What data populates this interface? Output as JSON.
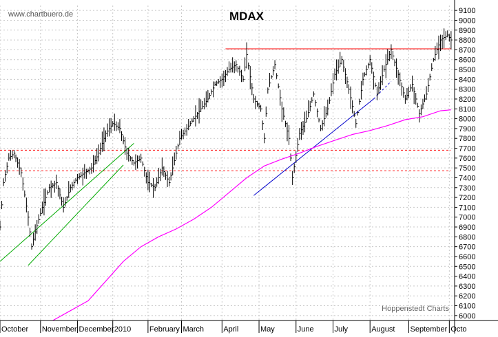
{
  "watermark": "www.chartbuero.de",
  "source_label": "Hoppenstedt Charts",
  "chart_data": {
    "type": "line",
    "title": "MDAX",
    "xlabel": "",
    "ylabel": "",
    "ylim": [
      5950,
      9150
    ],
    "grid": "dashed",
    "y_ticks": [
      6000,
      6100,
      6200,
      6300,
      6400,
      6500,
      6600,
      6700,
      6800,
      6900,
      7000,
      7100,
      7200,
      7300,
      7400,
      7500,
      7600,
      7700,
      7800,
      7900,
      8000,
      8100,
      8200,
      8300,
      8400,
      8500,
      8600,
      8700,
      8800,
      8900,
      9000,
      9100
    ],
    "x_tick_labels": [
      {
        "text": "October",
        "i": 0
      },
      {
        "text": "November",
        "i": 23
      },
      {
        "text": "December",
        "i": 44
      },
      {
        "text": "2010",
        "i": 64
      },
      {
        "text": "February",
        "i": 84
      },
      {
        "text": "March",
        "i": 103
      },
      {
        "text": "April",
        "i": 126
      },
      {
        "text": "May",
        "i": 147
      },
      {
        "text": "June",
        "i": 168
      },
      {
        "text": "July",
        "i": 189
      },
      {
        "text": "August",
        "i": 210
      },
      {
        "text": "September",
        "i": 232
      },
      {
        "text": "Octo",
        "i": 255
      }
    ],
    "x_range": [
      0,
      258
    ],
    "series": [
      {
        "kind": "price",
        "color": "#000000",
        "anchors": [
          [
            0,
            6900
          ],
          [
            2,
            7350
          ],
          [
            5,
            7600
          ],
          [
            8,
            7650
          ],
          [
            12,
            7450
          ],
          [
            16,
            7000
          ],
          [
            18,
            6700
          ],
          [
            20,
            6850
          ],
          [
            24,
            7100
          ],
          [
            28,
            7300
          ],
          [
            32,
            7350
          ],
          [
            36,
            7100
          ],
          [
            40,
            7300
          ],
          [
            44,
            7400
          ],
          [
            48,
            7450
          ],
          [
            52,
            7500
          ],
          [
            56,
            7650
          ],
          [
            60,
            7850
          ],
          [
            64,
            7950
          ],
          [
            68,
            7900
          ],
          [
            72,
            7650
          ],
          [
            76,
            7550
          ],
          [
            80,
            7600
          ],
          [
            84,
            7350
          ],
          [
            88,
            7300
          ],
          [
            92,
            7500
          ],
          [
            96,
            7350
          ],
          [
            98,
            7500
          ],
          [
            102,
            7800
          ],
          [
            106,
            7900
          ],
          [
            110,
            8000
          ],
          [
            114,
            8100
          ],
          [
            118,
            8200
          ],
          [
            122,
            8350
          ],
          [
            126,
            8400
          ],
          [
            130,
            8500
          ],
          [
            134,
            8550
          ],
          [
            138,
            8400
          ],
          [
            140,
            8650
          ],
          [
            144,
            8200
          ],
          [
            148,
            8100
          ],
          [
            150,
            7800
          ],
          [
            152,
            8300
          ],
          [
            156,
            8550
          ],
          [
            160,
            8100
          ],
          [
            164,
            7800
          ],
          [
            166,
            7400
          ],
          [
            170,
            7850
          ],
          [
            174,
            8000
          ],
          [
            178,
            8250
          ],
          [
            182,
            7900
          ],
          [
            186,
            8100
          ],
          [
            190,
            8450
          ],
          [
            194,
            8600
          ],
          [
            198,
            8300
          ],
          [
            202,
            7950
          ],
          [
            206,
            8400
          ],
          [
            210,
            8600
          ],
          [
            214,
            8250
          ],
          [
            218,
            8500
          ],
          [
            222,
            8700
          ],
          [
            226,
            8450
          ],
          [
            230,
            8200
          ],
          [
            234,
            8350
          ],
          [
            238,
            8050
          ],
          [
            242,
            8250
          ],
          [
            246,
            8600
          ],
          [
            250,
            8800
          ],
          [
            254,
            8850
          ],
          [
            256,
            8800
          ]
        ]
      },
      {
        "kind": "moving-average",
        "color": "#ff00ff",
        "anchors": [
          [
            30,
            5950
          ],
          [
            40,
            6050
          ],
          [
            50,
            6150
          ],
          [
            60,
            6350
          ],
          [
            70,
            6550
          ],
          [
            80,
            6700
          ],
          [
            90,
            6800
          ],
          [
            100,
            6880
          ],
          [
            110,
            6980
          ],
          [
            120,
            7100
          ],
          [
            130,
            7250
          ],
          [
            140,
            7400
          ],
          [
            150,
            7520
          ],
          [
            160,
            7590
          ],
          [
            170,
            7650
          ],
          [
            180,
            7720
          ],
          [
            190,
            7780
          ],
          [
            200,
            7840
          ],
          [
            210,
            7880
          ],
          [
            220,
            7930
          ],
          [
            230,
            7990
          ],
          [
            240,
            8020
          ],
          [
            250,
            8080
          ],
          [
            256,
            8090
          ]
        ]
      }
    ],
    "lines": [
      {
        "name": "resistance",
        "color": "#ff0000",
        "style": "solid",
        "from": [
          128,
          8710
        ],
        "to": [
          256,
          8710
        ]
      },
      {
        "name": "support-1",
        "color": "#ff0000",
        "style": "dashed",
        "from": [
          0,
          7680
        ],
        "to": [
          256,
          7680
        ]
      },
      {
        "name": "support-2",
        "color": "#ff0000",
        "style": "dashed",
        "from": [
          0,
          7470
        ],
        "to": [
          256,
          7470
        ]
      },
      {
        "name": "trend-1",
        "color": "#00aa00",
        "style": "solid",
        "from": [
          0,
          6550
        ],
        "to": [
          76,
          7750
        ]
      },
      {
        "name": "trend-2",
        "color": "#00aa00",
        "style": "solid",
        "from": [
          16,
          6510
        ],
        "to": [
          70,
          7530
        ]
      },
      {
        "name": "trend-3",
        "color": "#0000cc",
        "style": "solid",
        "from": [
          144,
          7220
        ],
        "to": [
          212,
          8200
        ]
      },
      {
        "name": "trend-3-ext",
        "color": "#0000cc",
        "style": "dashed",
        "from": [
          212,
          8200
        ],
        "to": [
          222,
          8380
        ]
      }
    ]
  }
}
